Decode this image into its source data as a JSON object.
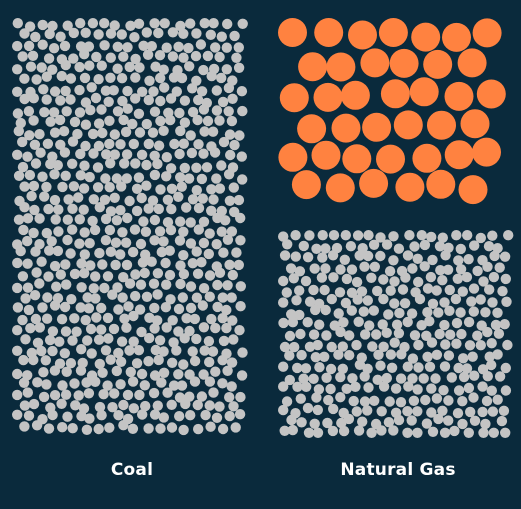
{
  "colors": {
    "background": "#0a2a3c",
    "small_particle": "#c4c4c4",
    "large_particle": "#ff8240",
    "caption_text": "#ffffff"
  },
  "panels": [
    {
      "id": "coal",
      "label": "Coal",
      "particle_mix": {
        "small_share": 1.0,
        "large_share": 0.0
      }
    },
    {
      "id": "natural-gas",
      "label": "Natural Gas",
      "particle_mix": {
        "small_share": 0.5,
        "large_share": 0.5
      }
    }
  ]
}
